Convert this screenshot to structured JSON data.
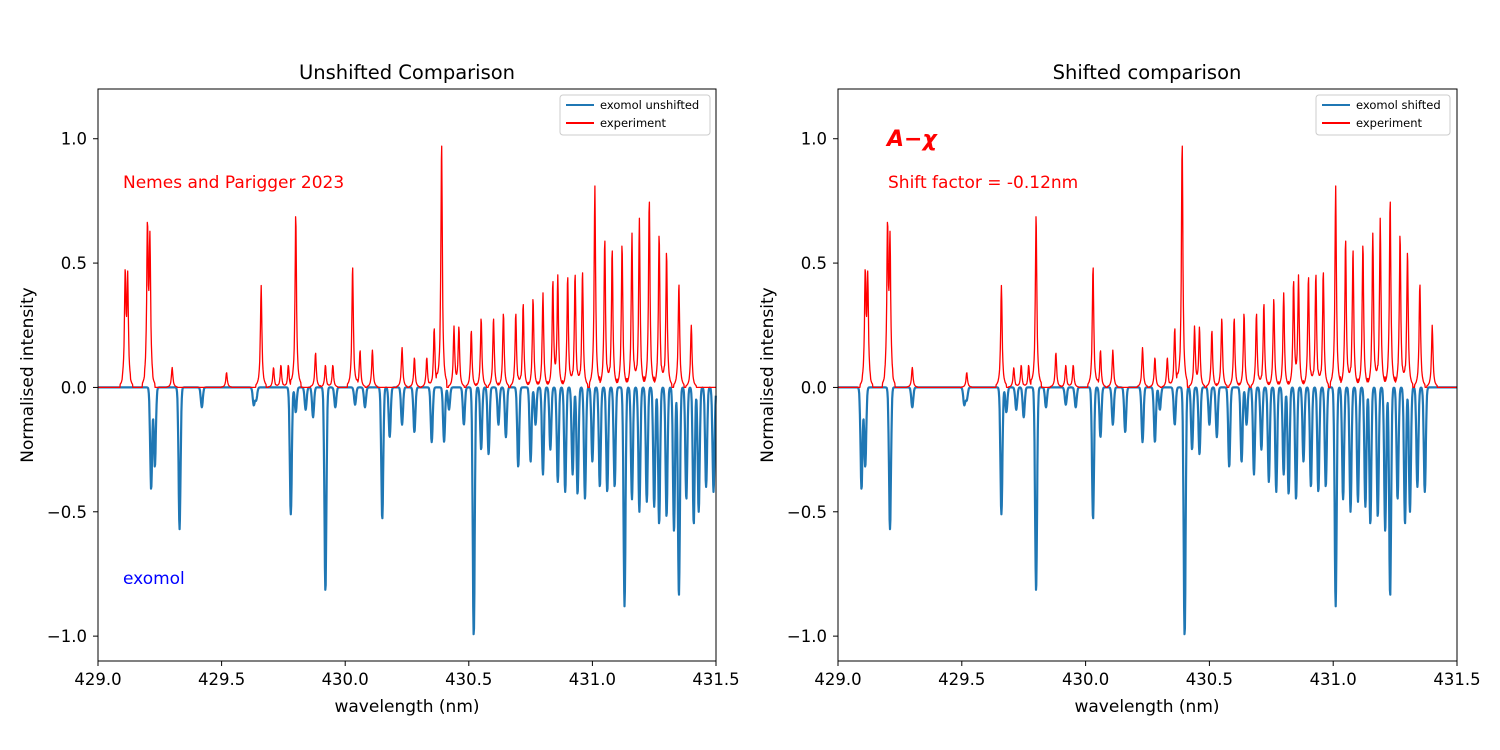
{
  "chart_data": [
    {
      "type": "line",
      "title": "Unshifted Comparison",
      "xlabel": "wavelength (nm)",
      "ylabel": "Normalised intensity",
      "xlim": [
        429.0,
        431.5
      ],
      "ylim": [
        -1.1,
        1.2
      ],
      "xticks": [
        "429.0",
        "429.5",
        "430.0",
        "430.5",
        "431.0",
        "431.5"
      ],
      "yticks": [
        "−1.0",
        "−0.5",
        "0.0",
        "0.5",
        "1.0"
      ],
      "legend_position": "top-right",
      "series": [
        {
          "name": "exomol unshifted",
          "color": "#1f77b4",
          "baseline": 0,
          "sign": -1,
          "peaks": [
            [
              429.215,
              0.41
            ],
            [
              429.23,
              0.32
            ],
            [
              429.33,
              0.57
            ],
            [
              429.42,
              0.08
            ],
            [
              429.63,
              0.07
            ],
            [
              429.64,
              0.05
            ],
            [
              429.78,
              0.51
            ],
            [
              429.8,
              0.1
            ],
            [
              429.84,
              0.09
            ],
            [
              429.87,
              0.12
            ],
            [
              429.92,
              0.82
            ],
            [
              429.96,
              0.08
            ],
            [
              430.04,
              0.07
            ],
            [
              430.08,
              0.08
            ],
            [
              430.15,
              0.53
            ],
            [
              430.18,
              0.2
            ],
            [
              430.23,
              0.15
            ],
            [
              430.28,
              0.18
            ],
            [
              430.35,
              0.22
            ],
            [
              430.4,
              0.22
            ],
            [
              430.42,
              0.09
            ],
            [
              430.48,
              0.15
            ],
            [
              430.52,
              1.0
            ],
            [
              430.55,
              0.25
            ],
            [
              430.58,
              0.27
            ],
            [
              430.62,
              0.15
            ],
            [
              430.65,
              0.2
            ],
            [
              430.7,
              0.32
            ],
            [
              430.75,
              0.3
            ],
            [
              430.77,
              0.15
            ],
            [
              430.8,
              0.35
            ],
            [
              430.83,
              0.25
            ],
            [
              430.86,
              0.38
            ],
            [
              430.89,
              0.42
            ],
            [
              430.92,
              0.35
            ],
            [
              430.94,
              0.43
            ],
            [
              430.97,
              0.45
            ],
            [
              431.0,
              0.3
            ],
            [
              431.03,
              0.4
            ],
            [
              431.06,
              0.42
            ],
            [
              431.09,
              0.4
            ],
            [
              431.13,
              0.88
            ],
            [
              431.16,
              0.45
            ],
            [
              431.19,
              0.5
            ],
            [
              431.22,
              0.46
            ],
            [
              431.25,
              0.48
            ],
            [
              431.27,
              0.55
            ],
            [
              431.3,
              0.52
            ],
            [
              431.33,
              0.58
            ],
            [
              431.35,
              0.84
            ],
            [
              431.38,
              0.45
            ],
            [
              431.41,
              0.55
            ],
            [
              431.43,
              0.5
            ],
            [
              431.46,
              0.4
            ],
            [
              431.49,
              0.42
            ]
          ]
        },
        {
          "name": "experiment",
          "color": "#ff0000",
          "baseline": 0,
          "sign": 1,
          "peaks": [
            [
              429.11,
              0.44
            ],
            [
              429.12,
              0.42
            ],
            [
              429.2,
              0.62
            ],
            [
              429.21,
              0.56
            ],
            [
              429.3,
              0.08
            ],
            [
              429.52,
              0.06
            ],
            [
              429.66,
              0.41
            ],
            [
              429.71,
              0.08
            ],
            [
              429.74,
              0.09
            ],
            [
              429.77,
              0.09
            ],
            [
              429.8,
              0.7
            ],
            [
              429.88,
              0.14
            ],
            [
              429.92,
              0.09
            ],
            [
              429.95,
              0.09
            ],
            [
              430.03,
              0.49
            ],
            [
              430.06,
              0.15
            ],
            [
              430.11,
              0.15
            ],
            [
              430.23,
              0.16
            ],
            [
              430.28,
              0.12
            ],
            [
              430.33,
              0.12
            ],
            [
              430.36,
              0.24
            ],
            [
              430.39,
              0.99
            ],
            [
              430.44,
              0.24
            ],
            [
              430.46,
              0.24
            ],
            [
              430.51,
              0.23
            ],
            [
              430.55,
              0.28
            ],
            [
              430.6,
              0.28
            ],
            [
              430.64,
              0.3
            ],
            [
              430.69,
              0.3
            ],
            [
              430.72,
              0.34
            ],
            [
              430.76,
              0.36
            ],
            [
              430.8,
              0.38
            ],
            [
              430.84,
              0.42
            ],
            [
              430.86,
              0.44
            ],
            [
              430.9,
              0.45
            ],
            [
              430.93,
              0.46
            ],
            [
              430.96,
              0.47
            ],
            [
              431.01,
              0.81
            ],
            [
              431.05,
              0.6
            ],
            [
              431.08,
              0.56
            ],
            [
              431.12,
              0.58
            ],
            [
              431.16,
              0.62
            ],
            [
              431.19,
              0.68
            ],
            [
              431.23,
              0.76
            ],
            [
              431.27,
              0.62
            ],
            [
              431.3,
              0.55
            ],
            [
              431.35,
              0.42
            ],
            [
              431.4,
              0.25
            ]
          ]
        }
      ],
      "annotations": [
        {
          "text": "Nemes and Parigger 2023",
          "x": 429.1,
          "y": 0.8,
          "color": "#ff0000"
        },
        {
          "text": "exomol",
          "x": 429.1,
          "y": -0.8,
          "color": "#0000ff"
        }
      ]
    },
    {
      "type": "line",
      "title": "Shifted comparison",
      "xlabel": "wavelength (nm)",
      "ylabel": "Normalised intensity",
      "xlim": [
        429.0,
        431.5
      ],
      "ylim": [
        -1.1,
        1.2
      ],
      "xticks": [
        "429.0",
        "429.5",
        "430.0",
        "430.5",
        "431.0",
        "431.5"
      ],
      "yticks": [
        "−1.0",
        "−0.5",
        "0.0",
        "0.5",
        "1.0"
      ],
      "legend_position": "top-right",
      "shift_nm": -0.12,
      "series": [
        {
          "name": "exomol shifted",
          "color": "#1f77b4",
          "baseline": 0,
          "sign": -1,
          "same_peaks_as": "exomol unshifted",
          "shift_nm": -0.12
        },
        {
          "name": "experiment",
          "color": "#ff0000",
          "baseline": 0,
          "sign": 1,
          "same_peaks_as": "experiment",
          "shift_nm": 0
        }
      ],
      "annotations": [
        {
          "text": "A−χ",
          "x": 429.2,
          "y": 0.98,
          "color": "#ff0000"
        },
        {
          "text": "Shift factor = -0.12nm",
          "x": 429.2,
          "y": 0.8,
          "color": "#ff0000"
        }
      ]
    }
  ]
}
